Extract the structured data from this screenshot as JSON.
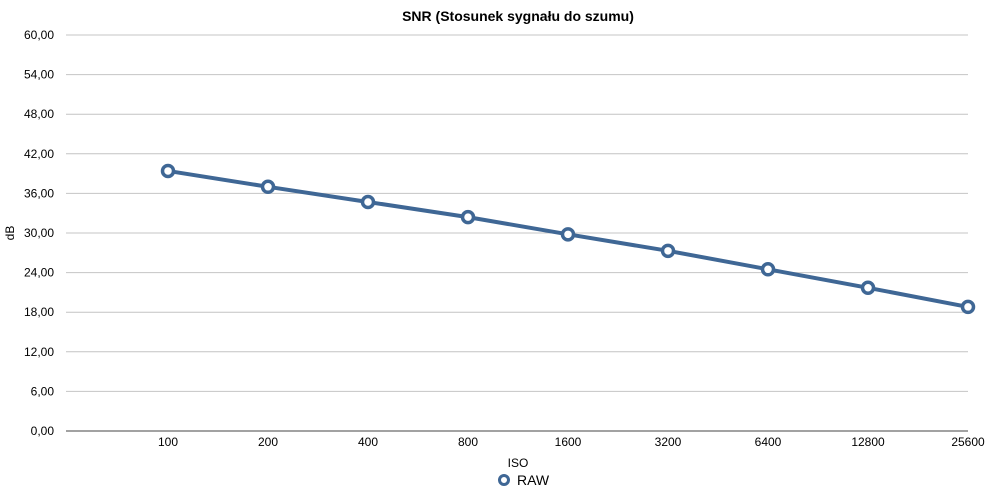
{
  "chart_data": {
    "type": "line",
    "title": "SNR (Stosunek sygnału do szumu)",
    "xlabel": "ISO",
    "ylabel": "dB",
    "categories": [
      "100",
      "200",
      "400",
      "800",
      "1600",
      "3200",
      "6400",
      "12800",
      "25600"
    ],
    "series": [
      {
        "name": "RAW",
        "color": "#3f6795",
        "values": [
          39.4,
          37.0,
          34.7,
          32.4,
          29.8,
          27.3,
          24.5,
          21.7,
          18.8
        ]
      }
    ],
    "ylim": [
      0,
      60
    ],
    "yticks": [
      "0,00",
      "6,00",
      "12,00",
      "18,00",
      "24,00",
      "30,00",
      "36,00",
      "42,00",
      "48,00",
      "54,00",
      "60,00"
    ],
    "grid": "horizontal",
    "legend_position": "bottom-center"
  }
}
